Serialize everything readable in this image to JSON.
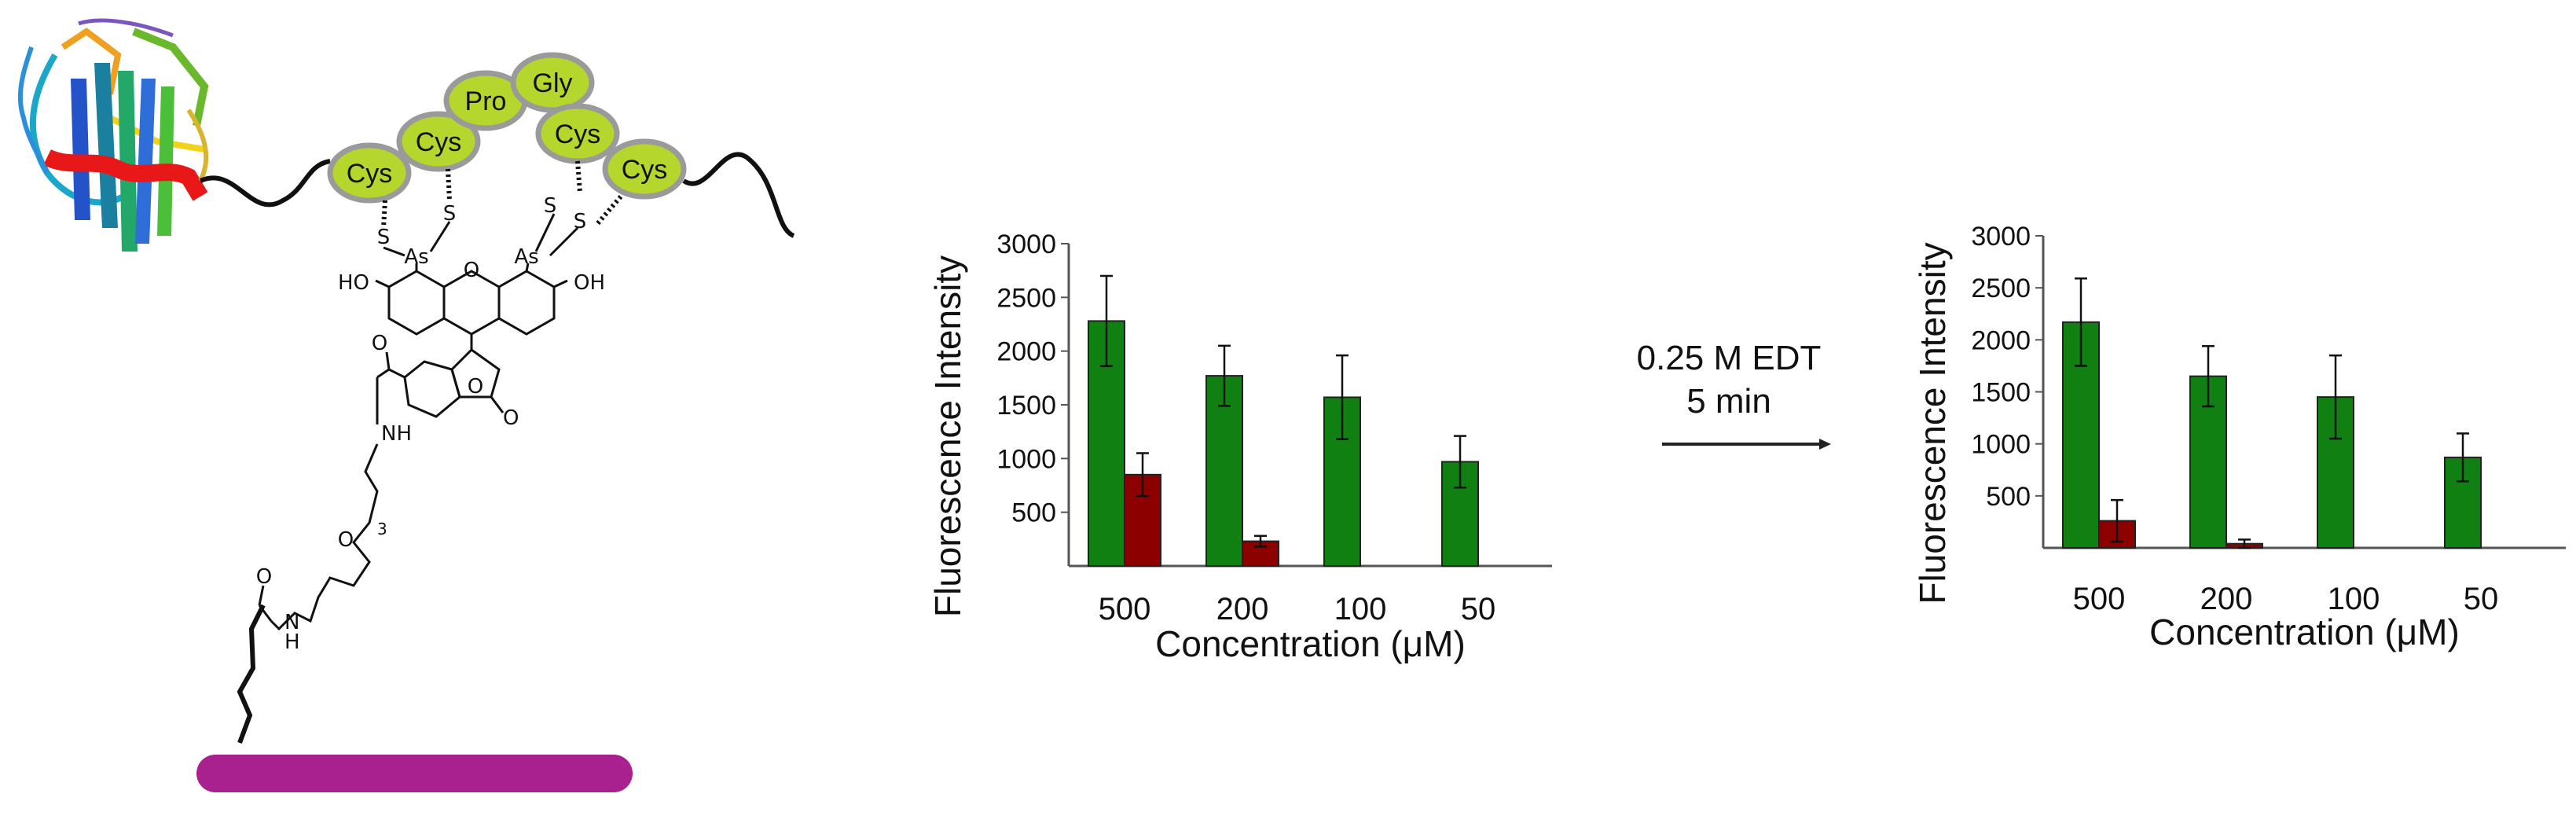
{
  "colors": {
    "green": "#118012",
    "red": "#8d0000",
    "bead": "#b5d62c",
    "surface": "#a8218f",
    "ink": "#111111"
  },
  "scheme": {
    "peptide": [
      "Cys",
      "Cys",
      "Pro",
      "Gly",
      "Cys",
      "Cys"
    ],
    "atoms": {
      "s": "S",
      "as": "As",
      "ho": "HO",
      "oh": "OH",
      "o": "O",
      "nh": "NH",
      "h": "H",
      "n": "N",
      "sub": "3"
    },
    "protein_icon": "protein-ribbon-icon",
    "surface_icon": "surface-bar-icon"
  },
  "arrow": {
    "line1": "0.25 M EDT",
    "line2": "5 min"
  },
  "chart_data": [
    {
      "type": "bar",
      "panel": "before",
      "categories": [
        "500",
        "200",
        "100",
        "50"
      ],
      "series": [
        {
          "name": "green",
          "color": "#118012",
          "values": [
            2280,
            1770,
            1570,
            970
          ],
          "errors": [
            420,
            280,
            390,
            240
          ]
        },
        {
          "name": "red",
          "color": "#8d0000",
          "values": [
            850,
            230,
            null,
            null
          ],
          "errors": [
            200,
            50,
            null,
            null
          ]
        }
      ],
      "yticks": [
        500,
        1000,
        1500,
        2000,
        2500,
        3000
      ],
      "ylim": [
        0,
        3000
      ],
      "xlabel": "Concentration (μM)",
      "ylabel": "Fluorescence Intensity"
    },
    {
      "type": "bar",
      "panel": "after",
      "categories": [
        "500",
        "200",
        "100",
        "50"
      ],
      "series": [
        {
          "name": "green",
          "color": "#118012",
          "values": [
            2170,
            1650,
            1450,
            870
          ],
          "errors": [
            420,
            290,
            400,
            230
          ]
        },
        {
          "name": "red",
          "color": "#8d0000",
          "values": [
            260,
            40,
            null,
            null
          ],
          "errors": [
            200,
            40,
            null,
            null
          ]
        }
      ],
      "yticks": [
        500,
        1000,
        1500,
        2000,
        2500,
        3000
      ],
      "ylim": [
        0,
        3000
      ],
      "xlabel": "Concentration (μM)",
      "ylabel": "Fluorescence Intensity"
    }
  ]
}
